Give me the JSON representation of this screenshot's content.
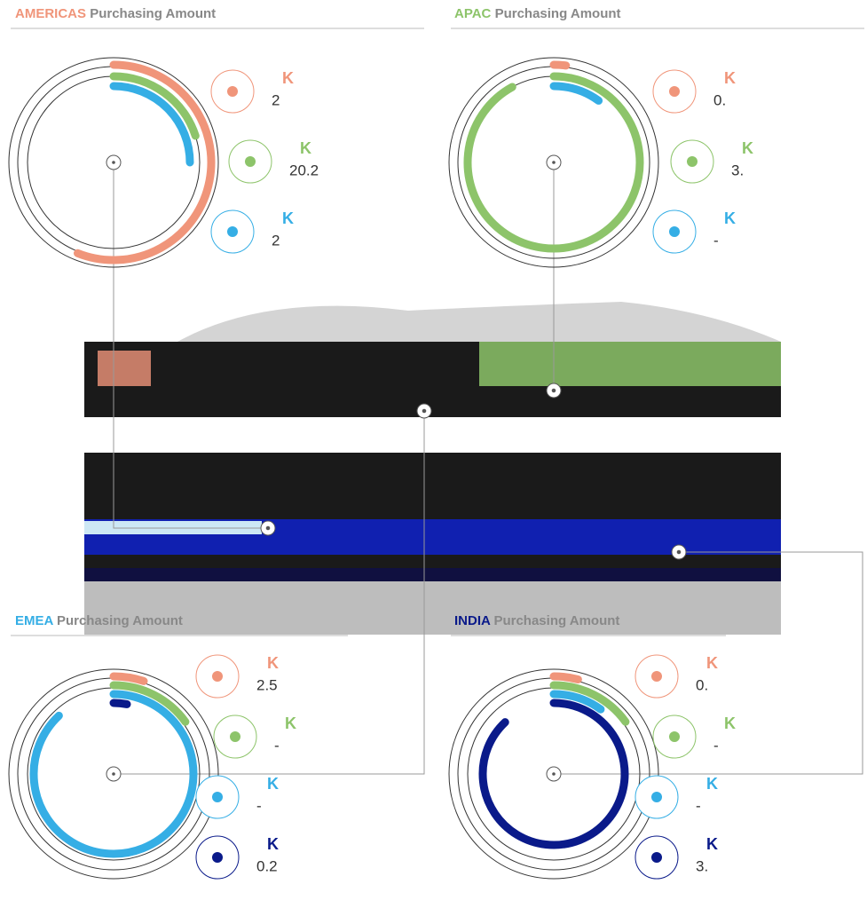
{
  "panels": [
    {
      "region": "AMERICAS",
      "title": "Purchasing Amount",
      "color": "#f0957a",
      "legend": [
        {
          "label": "K",
          "value": "2",
          "color": "#f0957a"
        },
        {
          "label": "K",
          "value": "20.2",
          "color": "#8dc46a"
        },
        {
          "label": "K",
          "value": "2",
          "color": "#35aee5"
        }
      ],
      "rings": [
        0.56,
        0.2,
        0.25
      ]
    },
    {
      "region": "APAC",
      "title": "Purchasing Amount",
      "color": "#8dc46a",
      "legend": [
        {
          "label": "K",
          "value": "0.",
          "color": "#f0957a"
        },
        {
          "label": "K",
          "value": "3.",
          "color": "#8dc46a"
        },
        {
          "label": "K",
          "value": "-",
          "color": "#35aee5"
        }
      ],
      "rings": [
        0.02,
        0.92,
        0.1
      ]
    },
    {
      "region": "EMEA",
      "title": "Purchasing Amount",
      "color": "#35aee5",
      "legend": [
        {
          "label": "K",
          "value": "2.5",
          "color": "#f0957a"
        },
        {
          "label": "K",
          "value": "-",
          "color": "#8dc46a"
        },
        {
          "label": "K",
          "value": "-",
          "color": "#35aee5"
        },
        {
          "label": "K",
          "value": "0.2",
          "color": "#0a1a8a"
        }
      ],
      "rings": [
        0.05,
        0.15,
        0.88,
        0.03
      ]
    },
    {
      "region": "INDIA",
      "title": "Purchasing Amount",
      "color": "#0a1a8a",
      "legend": [
        {
          "label": "K",
          "value": "0.",
          "color": "#f0957a"
        },
        {
          "label": "K",
          "value": "-",
          "color": "#8dc46a"
        },
        {
          "label": "K",
          "value": "-",
          "color": "#35aee5"
        },
        {
          "label": "K",
          "value": "3.",
          "color": "#0a1a8a"
        }
      ],
      "rings": [
        0.04,
        0.15,
        0.1,
        0.88
      ]
    }
  ]
}
